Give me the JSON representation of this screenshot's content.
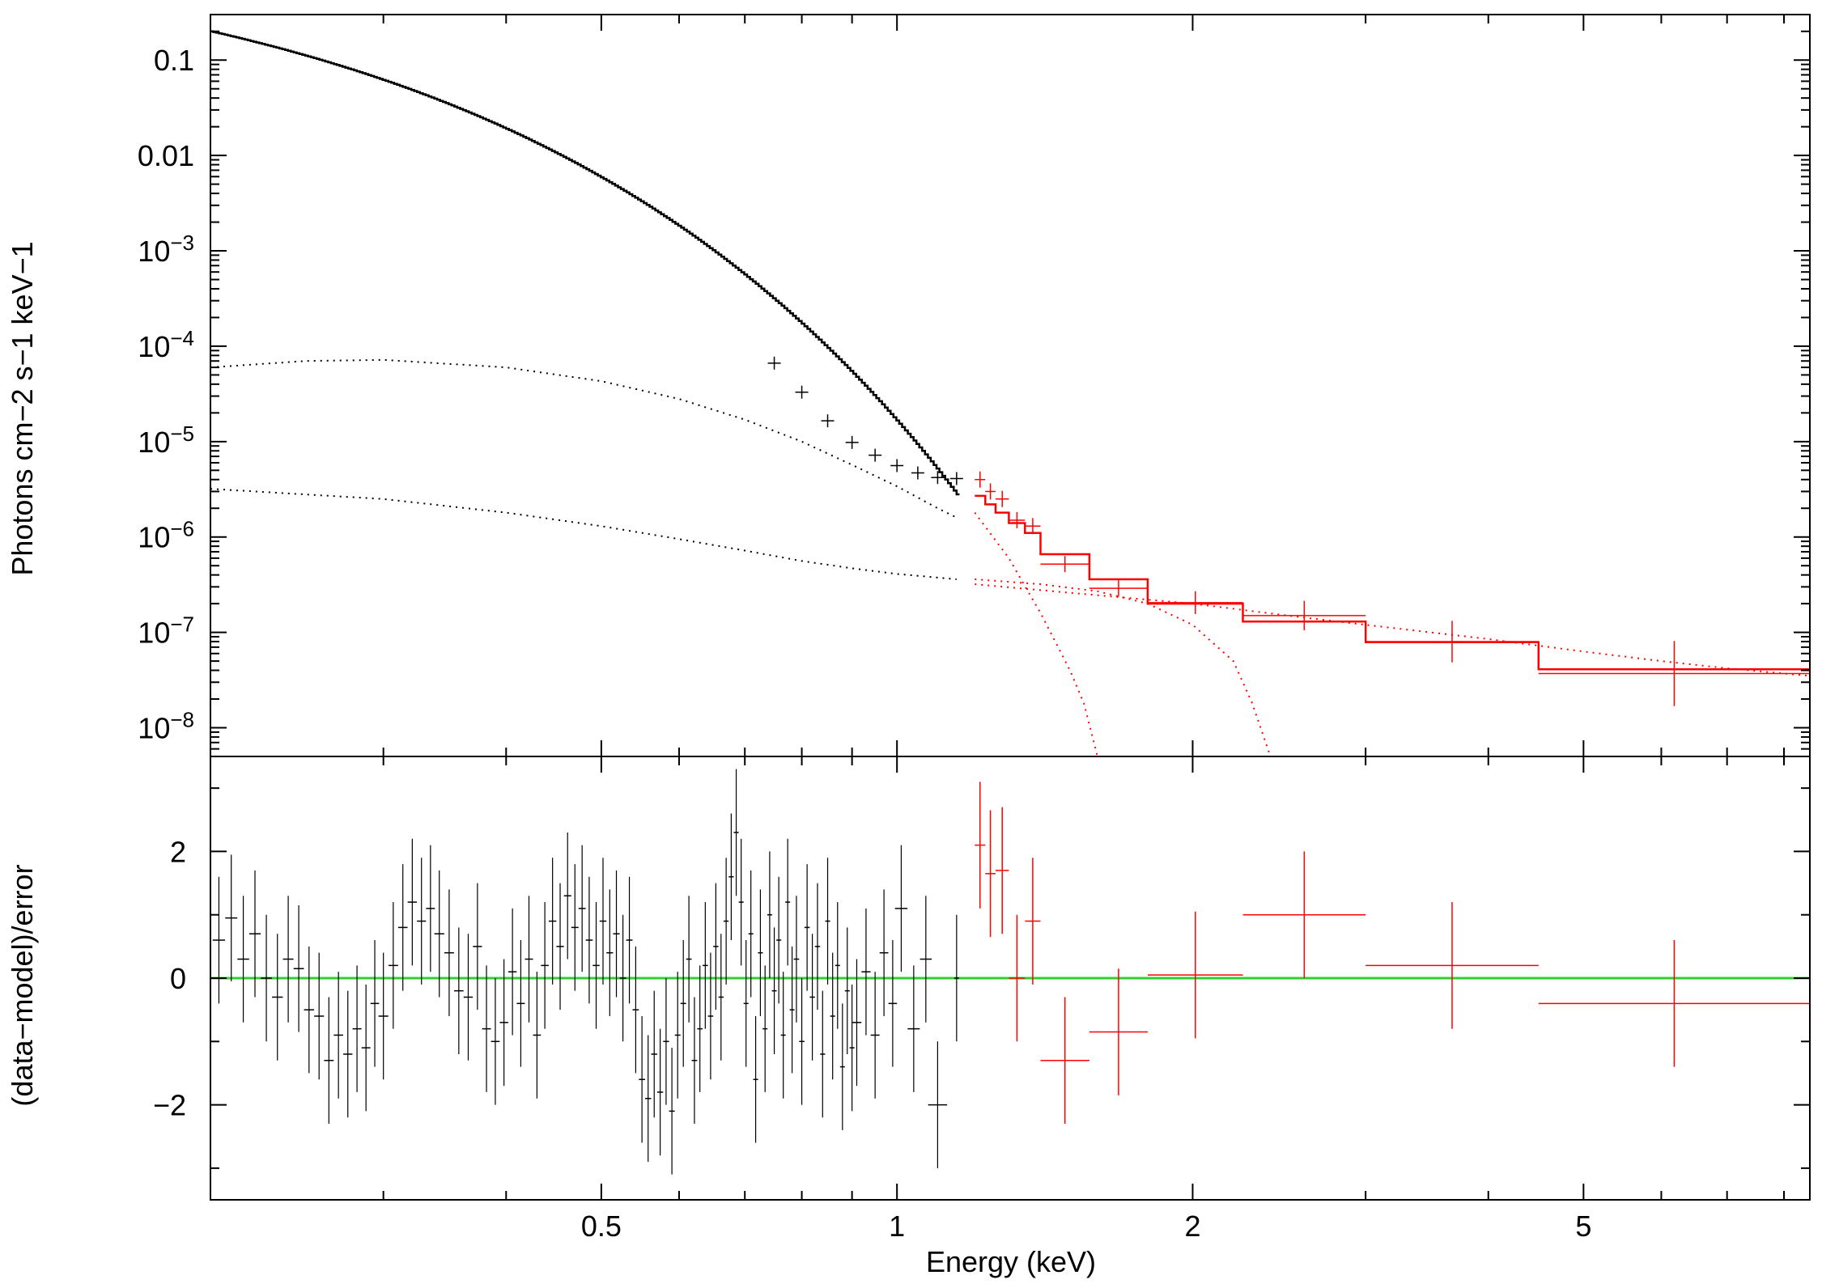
{
  "chart_data": [
    {
      "type": "scatter",
      "panel": "spectrum",
      "xlabel": "Energy (keV)",
      "ylabel": "Photons cm−2 s−1 keV−1",
      "xscale": "log",
      "yscale": "log",
      "xlim": [
        0.2,
        8.5
      ],
      "ylim": [
        5e-09,
        0.3
      ],
      "ytick_labels": [
        {
          "v": 0.1,
          "base": "0.1",
          "exp": ""
        },
        {
          "v": 0.01,
          "base": "0.01",
          "exp": ""
        },
        {
          "v": 0.001,
          "base": "10",
          "exp": "−3"
        },
        {
          "v": 0.0001,
          "base": "10",
          "exp": "−4"
        },
        {
          "v": 1e-05,
          "base": "10",
          "exp": "−5"
        },
        {
          "v": 1e-06,
          "base": "10",
          "exp": "−6"
        },
        {
          "v": 1e-07,
          "base": "10",
          "exp": "−7"
        },
        {
          "v": 1e-08,
          "base": "10",
          "exp": "−8"
        }
      ],
      "series": [
        {
          "color": "#000000",
          "style": "data+step",
          "model_shape": {
            "A": 0.2,
            "E0": 0.2,
            "kT": 0.085,
            "range": [
              0.2,
              1.15
            ]
          },
          "data_points": [
            {
              "x": 0.75,
              "y": 6.65e-05
            },
            {
              "x": 0.8,
              "y": 3.3e-05
            },
            {
              "x": 0.85,
              "y": 1.65e-05
            },
            {
              "x": 0.9,
              "y": 9.8e-06
            },
            {
              "x": 0.95,
              "y": 7.2e-06
            },
            {
              "x": 1.0,
              "y": 5.6e-06
            },
            {
              "x": 1.05,
              "y": 4.7e-06
            },
            {
              "x": 1.1,
              "y": 4.2e-06
            },
            {
              "x": 1.15,
              "y": 4.1e-06
            }
          ]
        },
        {
          "color": "#ff0000",
          "style": "data+step",
          "bins": [
            {
              "x0": 1.2,
              "x1": 1.23,
              "y": 4e-06,
              "model": 2.7e-06
            },
            {
              "x0": 1.23,
              "x1": 1.26,
              "y": 3e-06,
              "model": 2.2e-06
            },
            {
              "x0": 1.26,
              "x1": 1.3,
              "y": 2.5e-06,
              "model": 1.8e-06
            },
            {
              "x0": 1.3,
              "x1": 1.35,
              "y": 1.5e-06,
              "model": 1.4e-06
            },
            {
              "x0": 1.35,
              "x1": 1.4,
              "y": 1.3e-06,
              "model": 1.1e-06
            },
            {
              "x0": 1.4,
              "x1": 1.57,
              "y": 5.2e-07,
              "model": 6.6e-07
            },
            {
              "x0": 1.57,
              "x1": 1.8,
              "y": 2.9e-07,
              "model": 3.6e-07
            },
            {
              "x0": 1.8,
              "x1": 2.25,
              "y": 2.05e-07,
              "model": 2e-07
            },
            {
              "x0": 2.25,
              "x1": 3.0,
              "y": 1.5e-07,
              "model": 1.3e-07
            },
            {
              "x0": 3.0,
              "x1": 4.5,
              "y": 8e-08,
              "model": 7.9e-08
            },
            {
              "x0": 4.5,
              "x1": 8.5,
              "y": 3.7e-08,
              "model": 4.1e-08
            }
          ]
        }
      ],
      "components": [
        {
          "color": "#000000",
          "style": "dotted",
          "points": [
            [
              0.2,
              6e-05
            ],
            [
              0.25,
              7e-05
            ],
            [
              0.3,
              7.2e-05
            ],
            [
              0.4,
              6e-05
            ],
            [
              0.5,
              4.3e-05
            ],
            [
              0.6,
              2.8e-05
            ],
            [
              0.7,
              1.7e-05
            ],
            [
              0.8,
              1e-05
            ],
            [
              0.9,
              5.7e-06
            ],
            [
              1.0,
              3.4e-06
            ],
            [
              1.1,
              2e-06
            ],
            [
              1.15,
              1.6e-06
            ]
          ]
        },
        {
          "color": "#000000",
          "style": "dotted",
          "points": [
            [
              0.2,
              3.2e-06
            ],
            [
              0.3,
              2.5e-06
            ],
            [
              0.4,
              1.8e-06
            ],
            [
              0.5,
              1.3e-06
            ],
            [
              0.6,
              9.5e-07
            ],
            [
              0.7,
              7.2e-07
            ],
            [
              0.8,
              5.6e-07
            ],
            [
              0.9,
              4.7e-07
            ],
            [
              1.0,
              4.1e-07
            ],
            [
              1.15,
              3.6e-07
            ]
          ]
        },
        {
          "color": "#ff0000",
          "style": "dotted",
          "points": [
            [
              1.2,
              1.8e-06
            ],
            [
              1.3,
              6e-07
            ],
            [
              1.4,
              1.6e-07
            ],
            [
              1.5,
              4e-08
            ],
            [
              1.55,
              1.8e-08
            ],
            [
              1.6,
              5e-09
            ]
          ]
        },
        {
          "color": "#ff0000",
          "style": "dotted",
          "points": [
            [
              1.2,
              3.6e-07
            ],
            [
              1.4,
              3.2e-07
            ],
            [
              1.6,
              2.7e-07
            ],
            [
              1.8,
              2e-07
            ],
            [
              2.0,
              1.2e-07
            ],
            [
              2.2,
              5e-08
            ],
            [
              2.3,
              1.8e-08
            ],
            [
              2.4,
              5e-09
            ]
          ]
        },
        {
          "color": "#ff0000",
          "style": "dotted",
          "points": [
            [
              1.2,
              3.2e-07
            ],
            [
              1.5,
              2.6e-07
            ],
            [
              2.0,
              2e-07
            ],
            [
              2.5,
              1.5e-07
            ],
            [
              3.0,
              1.2e-07
            ],
            [
              4.0,
              8.5e-08
            ],
            [
              5.0,
              6.3e-08
            ],
            [
              6.0,
              5e-08
            ],
            [
              7.0,
              4.2e-08
            ],
            [
              8.5,
              3.5e-08
            ]
          ]
        }
      ]
    },
    {
      "type": "scatter",
      "panel": "residuals",
      "xlabel": "Energy (keV)",
      "ylabel": "(data−model)/error",
      "xscale": "log",
      "xlim": [
        0.2,
        8.5
      ],
      "ylim": [
        -3.5,
        3.5
      ],
      "yticks": [
        2,
        0,
        -2
      ],
      "ytick_labels": [
        "2",
        "0",
        "−2"
      ],
      "xticks": [
        0.5,
        1,
        2,
        5
      ],
      "xtick_labels": [
        "0.5",
        "1",
        "2",
        "5"
      ],
      "zero_line_color": "#33cc33",
      "series": [
        {
          "color": "#000000",
          "points": [
            {
              "x": 0.204,
              "y": 0.6
            },
            {
              "x": 0.21,
              "y": 0.95
            },
            {
              "x": 0.216,
              "y": 0.3
            },
            {
              "x": 0.222,
              "y": 0.7
            },
            {
              "x": 0.228,
              "y": 0.0
            },
            {
              "x": 0.234,
              "y": -0.3
            },
            {
              "x": 0.24,
              "y": 0.3
            },
            {
              "x": 0.246,
              "y": 0.15
            },
            {
              "x": 0.252,
              "y": -0.5
            },
            {
              "x": 0.258,
              "y": -0.6
            },
            {
              "x": 0.264,
              "y": -1.3
            },
            {
              "x": 0.27,
              "y": -0.9
            },
            {
              "x": 0.276,
              "y": -1.2
            },
            {
              "x": 0.282,
              "y": -0.8
            },
            {
              "x": 0.288,
              "y": -1.1
            },
            {
              "x": 0.294,
              "y": -0.4
            },
            {
              "x": 0.3,
              "y": -0.6
            },
            {
              "x": 0.307,
              "y": 0.2
            },
            {
              "x": 0.314,
              "y": 0.8
            },
            {
              "x": 0.321,
              "y": 1.2
            },
            {
              "x": 0.328,
              "y": 0.9
            },
            {
              "x": 0.335,
              "y": 1.1
            },
            {
              "x": 0.342,
              "y": 0.7
            },
            {
              "x": 0.35,
              "y": 0.4
            },
            {
              "x": 0.358,
              "y": -0.2
            },
            {
              "x": 0.366,
              "y": -0.3
            },
            {
              "x": 0.374,
              "y": 0.5
            },
            {
              "x": 0.382,
              "y": -0.8
            },
            {
              "x": 0.39,
              "y": -1.0
            },
            {
              "x": 0.398,
              "y": -0.7
            },
            {
              "x": 0.406,
              "y": 0.1
            },
            {
              "x": 0.414,
              "y": -0.4
            },
            {
              "x": 0.422,
              "y": 0.3
            },
            {
              "x": 0.43,
              "y": -0.9
            },
            {
              "x": 0.438,
              "y": 0.2
            },
            {
              "x": 0.446,
              "y": 0.9
            },
            {
              "x": 0.454,
              "y": 0.5
            },
            {
              "x": 0.462,
              "y": 1.3
            },
            {
              "x": 0.47,
              "y": 0.8
            },
            {
              "x": 0.478,
              "y": 1.1
            },
            {
              "x": 0.486,
              "y": 0.6
            },
            {
              "x": 0.494,
              "y": 0.2
            },
            {
              "x": 0.502,
              "y": 0.9
            },
            {
              "x": 0.51,
              "y": 0.4
            },
            {
              "x": 0.518,
              "y": 0.7
            },
            {
              "x": 0.526,
              "y": 0.0
            },
            {
              "x": 0.534,
              "y": 0.6
            },
            {
              "x": 0.542,
              "y": -0.5
            },
            {
              "x": 0.55,
              "y": -1.6
            },
            {
              "x": 0.558,
              "y": -1.9
            },
            {
              "x": 0.566,
              "y": -1.2
            },
            {
              "x": 0.574,
              "y": -1.8
            },
            {
              "x": 0.582,
              "y": -1.0
            },
            {
              "x": 0.59,
              "y": -2.1
            },
            {
              "x": 0.598,
              "y": -0.9
            },
            {
              "x": 0.606,
              "y": -0.4
            },
            {
              "x": 0.614,
              "y": 0.3
            },
            {
              "x": 0.622,
              "y": -1.3
            },
            {
              "x": 0.63,
              "y": -0.8
            },
            {
              "x": 0.638,
              "y": 0.2
            },
            {
              "x": 0.646,
              "y": -0.6
            },
            {
              "x": 0.654,
              "y": 0.5
            },
            {
              "x": 0.662,
              "y": -0.3
            },
            {
              "x": 0.67,
              "y": 0.9
            },
            {
              "x": 0.678,
              "y": 1.6
            },
            {
              "x": 0.686,
              "y": 2.3
            },
            {
              "x": 0.694,
              "y": 1.2
            },
            {
              "x": 0.702,
              "y": -0.4
            },
            {
              "x": 0.71,
              "y": 0.7
            },
            {
              "x": 0.718,
              "y": -1.6
            },
            {
              "x": 0.726,
              "y": 0.4
            },
            {
              "x": 0.734,
              "y": -0.8
            },
            {
              "x": 0.742,
              "y": 1.0
            },
            {
              "x": 0.75,
              "y": -0.2
            },
            {
              "x": 0.758,
              "y": 0.6
            },
            {
              "x": 0.766,
              "y": -0.9
            },
            {
              "x": 0.774,
              "y": 1.2
            },
            {
              "x": 0.782,
              "y": -0.5
            },
            {
              "x": 0.79,
              "y": 0.3
            },
            {
              "x": 0.8,
              "y": -1.0
            },
            {
              "x": 0.81,
              "y": 0.8
            },
            {
              "x": 0.82,
              "y": -0.3
            },
            {
              "x": 0.83,
              "y": 0.5
            },
            {
              "x": 0.84,
              "y": -1.2
            },
            {
              "x": 0.85,
              "y": 0.9
            },
            {
              "x": 0.86,
              "y": -0.6
            },
            {
              "x": 0.87,
              "y": 0.2
            },
            {
              "x": 0.88,
              "y": -1.4
            },
            {
              "x": 0.89,
              "y": -0.2
            },
            {
              "x": 0.9,
              "y": -1.1
            },
            {
              "x": 0.91,
              "y": -0.7
            },
            {
              "x": 0.93,
              "y": 0.1
            },
            {
              "x": 0.95,
              "y": -0.9
            },
            {
              "x": 0.97,
              "y": 0.4
            },
            {
              "x": 0.99,
              "y": -0.4
            },
            {
              "x": 1.01,
              "y": 1.1
            },
            {
              "x": 1.04,
              "y": -0.8
            },
            {
              "x": 1.07,
              "y": 0.3
            },
            {
              "x": 1.1,
              "y": -2.0
            },
            {
              "x": 1.15,
              "y": 0.0
            }
          ]
        },
        {
          "color": "#ff0000",
          "bins": [
            {
              "x0": 1.2,
              "x1": 1.23,
              "y": 2.1
            },
            {
              "x0": 1.23,
              "x1": 1.26,
              "y": 1.65
            },
            {
              "x0": 1.26,
              "x1": 1.3,
              "y": 1.7
            },
            {
              "x0": 1.3,
              "x1": 1.35,
              "y": 0.0
            },
            {
              "x0": 1.35,
              "x1": 1.4,
              "y": 0.9
            },
            {
              "x0": 1.4,
              "x1": 1.57,
              "y": -1.3
            },
            {
              "x0": 1.57,
              "x1": 1.8,
              "y": -0.85
            },
            {
              "x0": 1.8,
              "x1": 2.25,
              "y": 0.05
            },
            {
              "x0": 2.25,
              "x1": 3.0,
              "y": 1.0
            },
            {
              "x0": 3.0,
              "x1": 4.5,
              "y": 0.2
            },
            {
              "x0": 4.5,
              "x1": 8.5,
              "y": -0.4
            }
          ]
        }
      ]
    }
  ]
}
